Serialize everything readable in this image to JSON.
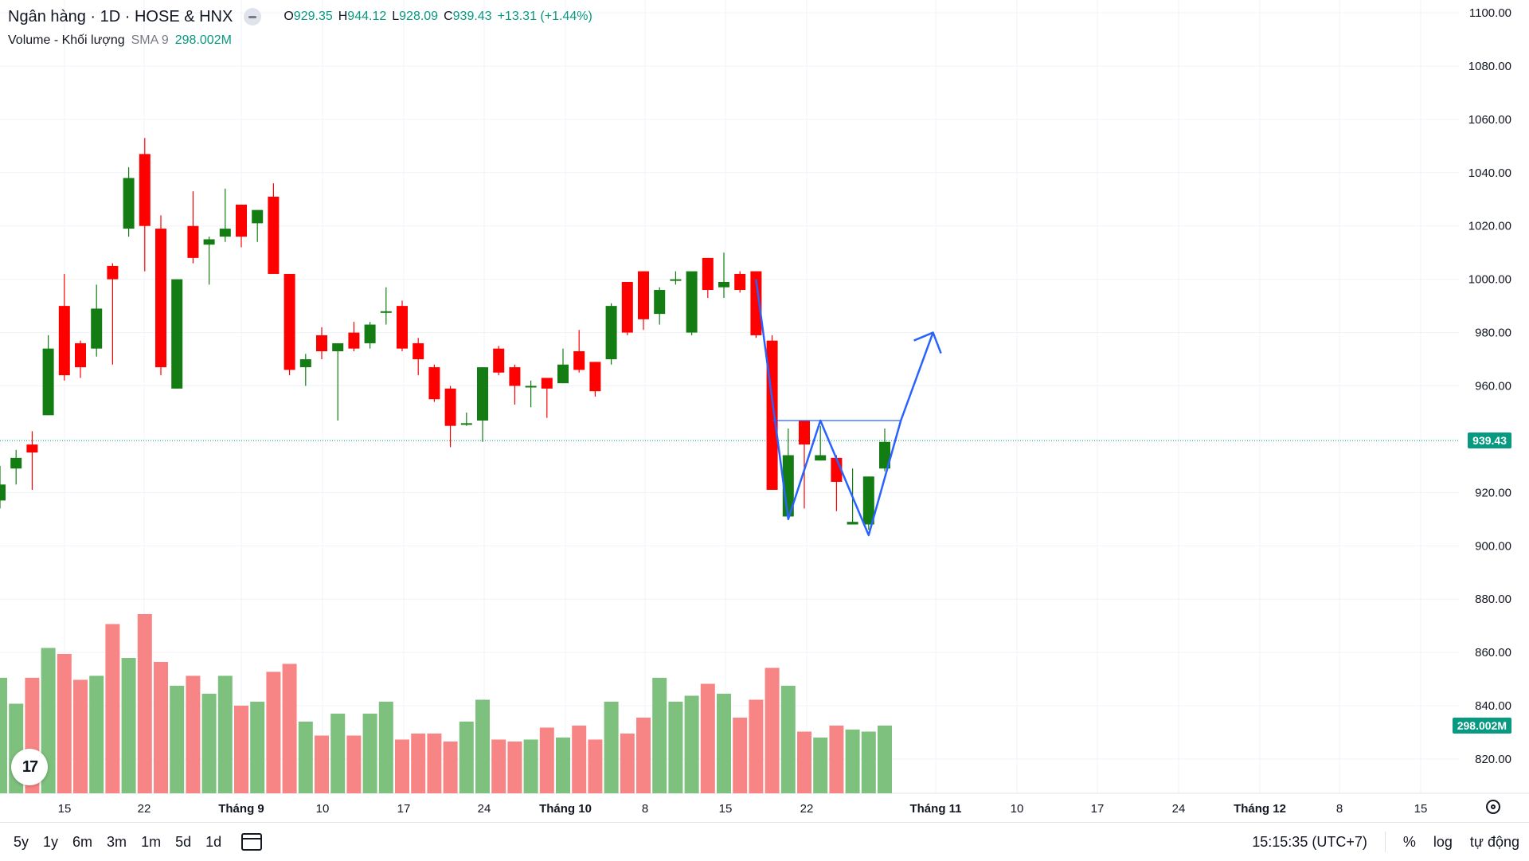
{
  "header": {
    "symbol_title": "Ngân hàng · 1D · HOSE & HNX",
    "ohlc": {
      "o_label": "O",
      "o_value": "929.35",
      "h_label": "H",
      "h_value": "944.12",
      "l_label": "L",
      "l_value": "928.09",
      "c_label": "C",
      "c_value": "939.43",
      "change": "+13.31 (+1.44%)"
    },
    "volume_label": "Volume - Khối lượng",
    "volume_sma": "SMA 9",
    "volume_value": "298.002M"
  },
  "price_tag": "939.43",
  "volume_tag": "298.002M",
  "logo_text": "17",
  "bottom_bar": {
    "ranges": [
      "5y",
      "1y",
      "6m",
      "3m",
      "1m",
      "5d",
      "1d"
    ],
    "time": "15:15:35 (UTC+7)",
    "percent": "%",
    "log": "log",
    "auto": "tự động"
  },
  "colors": {
    "up": "#089981",
    "down": "#f23645",
    "up_candle": "#137d13",
    "down_candle": "#ff0000",
    "up_volume": "#7ec07e",
    "down_volume": "#f88586",
    "pattern": "#2962ff",
    "last_price": "#089981"
  },
  "chart_data": {
    "type": "candlestick",
    "y_axis": {
      "ticks": [
        "1100.00",
        "1080.00",
        "1060.00",
        "1040.00",
        "1020.00",
        "1000.00",
        "980.00",
        "960.00",
        "940.00",
        "920.00",
        "900.00",
        "880.00",
        "860.00",
        "840.00",
        "820.00"
      ],
      "range": [
        813,
        1101
      ]
    },
    "x_axis_labels": [
      "15",
      "22",
      "Tháng 9",
      "10",
      "17",
      "24",
      "Tháng 10",
      "8",
      "15",
      "22",
      "Tháng 11",
      "10",
      "17",
      "24",
      "Tháng 12",
      "8",
      "15"
    ],
    "last_price": 939.43,
    "candles": [
      {
        "o": 917,
        "h": 930,
        "l": 914,
        "c": 923,
        "v": 0.58
      },
      {
        "o": 929,
        "h": 936,
        "l": 923,
        "c": 933,
        "v": 0.45
      },
      {
        "o": 938,
        "h": 943,
        "l": 921,
        "c": 935,
        "v": 0.58
      },
      {
        "o": 949,
        "h": 979,
        "l": 949,
        "c": 974,
        "v": 0.73
      },
      {
        "o": 990,
        "h": 1002,
        "l": 962,
        "c": 964,
        "v": 0.7
      },
      {
        "o": 976,
        "h": 977,
        "l": 963,
        "c": 967,
        "v": 0.57
      },
      {
        "o": 974,
        "h": 998,
        "l": 971,
        "c": 989,
        "v": 0.59
      },
      {
        "o": 1005,
        "h": 1006,
        "l": 968,
        "c": 1000,
        "v": 0.85
      },
      {
        "o": 1019,
        "h": 1042,
        "l": 1016,
        "c": 1038,
        "v": 0.68
      },
      {
        "o": 1047,
        "h": 1053,
        "l": 1003,
        "c": 1020,
        "v": 0.9
      },
      {
        "o": 1019,
        "h": 1024,
        "l": 964,
        "c": 967,
        "v": 0.66
      },
      {
        "o": 959,
        "h": 1000,
        "l": 959,
        "c": 1000,
        "v": 0.54
      },
      {
        "o": 1020,
        "h": 1033,
        "l": 1006,
        "c": 1008,
        "v": 0.59
      },
      {
        "o": 1013,
        "h": 1016,
        "l": 998,
        "c": 1015,
        "v": 0.5
      },
      {
        "o": 1016,
        "h": 1034,
        "l": 1014,
        "c": 1019,
        "v": 0.59
      },
      {
        "o": 1028,
        "h": 1028,
        "l": 1012,
        "c": 1016,
        "v": 0.44
      },
      {
        "o": 1021,
        "h": 1026,
        "l": 1014,
        "c": 1026,
        "v": 0.46
      },
      {
        "o": 1031,
        "h": 1036,
        "l": 1002,
        "c": 1002,
        "v": 0.61
      },
      {
        "o": 1002,
        "h": 1002,
        "l": 964,
        "c": 966,
        "v": 0.65
      },
      {
        "o": 967,
        "h": 972,
        "l": 960,
        "c": 970,
        "v": 0.36
      },
      {
        "o": 979,
        "h": 982,
        "l": 970,
        "c": 973,
        "v": 0.29
      },
      {
        "o": 973,
        "h": 975,
        "l": 947,
        "c": 976,
        "v": 0.4
      },
      {
        "o": 980,
        "h": 984,
        "l": 973,
        "c": 974,
        "v": 0.29
      },
      {
        "o": 976,
        "h": 984,
        "l": 974,
        "c": 983,
        "v": 0.4
      },
      {
        "o": 988,
        "h": 997,
        "l": 983,
        "c": 988,
        "v": 0.46
      },
      {
        "o": 990,
        "h": 992,
        "l": 973,
        "c": 974,
        "v": 0.27
      },
      {
        "o": 976,
        "h": 978,
        "l": 964,
        "c": 970,
        "v": 0.3
      },
      {
        "o": 967,
        "h": 968,
        "l": 954,
        "c": 955,
        "v": 0.3
      },
      {
        "o": 959,
        "h": 960,
        "l": 937,
        "c": 945,
        "v": 0.26
      },
      {
        "o": 946,
        "h": 950,
        "l": 945,
        "c": 946,
        "v": 0.36
      },
      {
        "o": 947,
        "h": 967,
        "l": 939,
        "c": 967,
        "v": 0.47
      },
      {
        "o": 974,
        "h": 975,
        "l": 964,
        "c": 965,
        "v": 0.27
      },
      {
        "o": 967,
        "h": 968,
        "l": 953,
        "c": 960,
        "v": 0.26
      },
      {
        "o": 960,
        "h": 962,
        "l": 952,
        "c": 960,
        "v": 0.27
      },
      {
        "o": 963,
        "h": 963,
        "l": 948,
        "c": 959,
        "v": 0.33
      },
      {
        "o": 961,
        "h": 974,
        "l": 961,
        "c": 968,
        "v": 0.28
      },
      {
        "o": 973,
        "h": 981,
        "l": 965,
        "c": 966,
        "v": 0.34
      },
      {
        "o": 969,
        "h": 969,
        "l": 956,
        "c": 958,
        "v": 0.27
      },
      {
        "o": 970,
        "h": 991,
        "l": 968,
        "c": 990,
        "v": 0.46
      },
      {
        "o": 999,
        "h": 999,
        "l": 979,
        "c": 980,
        "v": 0.3
      },
      {
        "o": 1003,
        "h": 1003,
        "l": 981,
        "c": 985,
        "v": 0.38
      },
      {
        "o": 987,
        "h": 997,
        "l": 983,
        "c": 996,
        "v": 0.58
      },
      {
        "o": 1000,
        "h": 1003,
        "l": 998,
        "c": 1000,
        "v": 0.46
      },
      {
        "o": 980,
        "h": 1002,
        "l": 979,
        "c": 1003,
        "v": 0.49
      },
      {
        "o": 1008,
        "h": 1008,
        "l": 993,
        "c": 996,
        "v": 0.55
      },
      {
        "o": 997,
        "h": 1010,
        "l": 993,
        "c": 999,
        "v": 0.5
      },
      {
        "o": 1002,
        "h": 1003,
        "l": 995,
        "c": 996,
        "v": 0.38
      },
      {
        "o": 1003,
        "h": 1003,
        "l": 978,
        "c": 979,
        "v": 0.47
      },
      {
        "o": 977,
        "h": 979,
        "l": 921,
        "c": 921,
        "v": 0.63
      },
      {
        "o": 911,
        "h": 944,
        "l": 911,
        "c": 934,
        "v": 0.54
      },
      {
        "o": 947,
        "h": 947,
        "l": 914,
        "c": 938,
        "v": 0.31
      },
      {
        "o": 932,
        "h": 945,
        "l": 932,
        "c": 934,
        "v": 0.28
      },
      {
        "o": 933,
        "h": 934,
        "l": 913,
        "c": 924,
        "v": 0.34
      },
      {
        "o": 908,
        "h": 929,
        "l": 908,
        "c": 909,
        "v": 0.32
      },
      {
        "o": 908,
        "h": 926,
        "l": 906,
        "c": 926,
        "v": 0.31
      },
      {
        "o": 929,
        "h": 944,
        "l": 928,
        "c": 939,
        "v": 0.34
      }
    ],
    "pattern_line_points": [
      {
        "i": 47,
        "p": 1000
      },
      {
        "i": 49,
        "p": 910
      },
      {
        "i": 51,
        "p": 947
      },
      {
        "i": 54,
        "p": 904
      },
      {
        "i": 56,
        "p": 947
      },
      {
        "i": 58,
        "p": 980
      }
    ],
    "neckline": {
      "from_i": 48,
      "to_i": 56,
      "p": 947
    }
  }
}
